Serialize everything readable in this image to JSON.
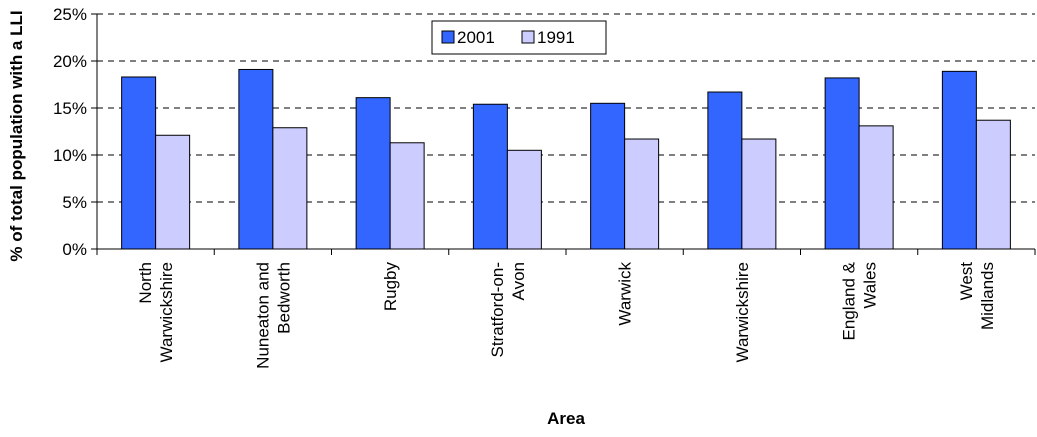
{
  "chart_data": {
    "type": "bar",
    "xlabel": "Area",
    "ylabel": "% of total  population with a LLI",
    "ylim": [
      0,
      25
    ],
    "yticks": [
      "0%",
      "5%",
      "10%",
      "15%",
      "20%",
      "25%"
    ],
    "grid": true,
    "legend_position": "top-center",
    "categories": [
      [
        "North",
        "Warwickshire"
      ],
      [
        "Nuneaton and",
        "Bedworth"
      ],
      [
        "Rugby"
      ],
      [
        "Stratford-on-",
        "Avon"
      ],
      [
        "Warwick"
      ],
      [
        "Warwickshire"
      ],
      [
        "England &",
        "Wales"
      ],
      [
        "West",
        "Midlands"
      ]
    ],
    "series": [
      {
        "name": "2001",
        "color": "#3366ff",
        "values": [
          18.3,
          19.1,
          16.1,
          15.4,
          15.5,
          16.7,
          18.2,
          18.9
        ]
      },
      {
        "name": "1991",
        "color": "#ccccff",
        "values": [
          12.1,
          12.9,
          11.3,
          10.5,
          11.7,
          11.7,
          13.1,
          13.7
        ]
      }
    ]
  }
}
